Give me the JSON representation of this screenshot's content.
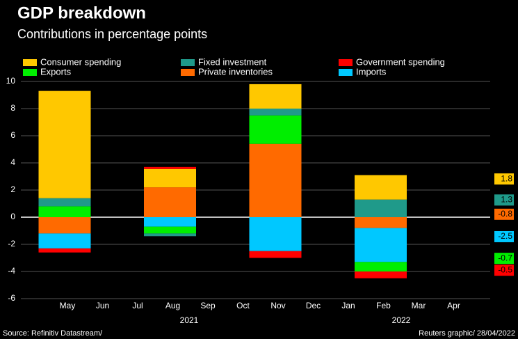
{
  "chart_data": {
    "type": "bar",
    "stacked": true,
    "title": "GDP breakdown",
    "subtitle": "Contributions in percentage points",
    "source": "Source: Refinitiv Datastream/",
    "credit": "Reuters graphic/ 28/04/2022",
    "categories": [
      "May",
      "Jun",
      "Jul",
      "Aug",
      "Sep",
      "Oct",
      "Nov",
      "Dec",
      "Jan",
      "Feb",
      "Mar",
      "Apr"
    ],
    "year_labels": [
      "2021",
      "2022"
    ],
    "series": [
      {
        "name": "Consumer spending",
        "color": "#ffc800",
        "values": [
          7.9,
          null,
          null,
          1.35,
          null,
          null,
          1.8,
          null,
          null,
          1.8,
          null,
          null
        ]
      },
      {
        "name": "Fixed investment",
        "color": "#1f9a8a",
        "values": [
          0.6,
          null,
          null,
          -0.2,
          null,
          null,
          0.5,
          null,
          null,
          1.3,
          null,
          null
        ]
      },
      {
        "name": "Government spending",
        "color": "#ff0000",
        "values": [
          -0.3,
          null,
          null,
          0.15,
          null,
          null,
          -0.5,
          null,
          null,
          -0.5,
          null,
          null
        ]
      },
      {
        "name": "Exports",
        "color": "#00ee00",
        "values": [
          0.8,
          null,
          null,
          -0.5,
          null,
          null,
          2.1,
          null,
          null,
          -0.7,
          null,
          null
        ]
      },
      {
        "name": "Private inventories",
        "color": "#ff6a00",
        "values": [
          -1.2,
          null,
          null,
          2.2,
          null,
          null,
          5.4,
          null,
          null,
          -0.8,
          null,
          null
        ]
      },
      {
        "name": "Imports",
        "color": "#00c8ff",
        "values": [
          -1.1,
          null,
          null,
          -0.7,
          null,
          null,
          -2.5,
          null,
          null,
          -2.5,
          null,
          null
        ]
      }
    ],
    "ylim": [
      -6,
      10
    ],
    "yticks": [
      -6,
      -4,
      -2,
      0,
      2,
      4,
      6,
      8,
      10
    ],
    "grid": true
  }
}
